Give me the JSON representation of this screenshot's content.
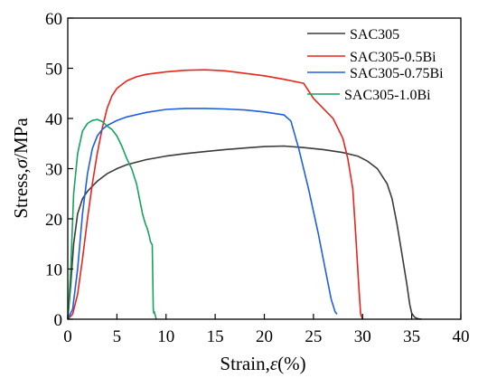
{
  "chart_data": {
    "type": "line",
    "title": "",
    "xlabel_prefix": "Strain,",
    "xlabel_symbol": "ε",
    "xlabel_suffix": "(%)",
    "ylabel_prefix": "Stress,",
    "ylabel_symbol": "σ",
    "ylabel_suffix": "/MPa",
    "xlim": [
      0,
      40
    ],
    "ylim": [
      0,
      60
    ],
    "xticks": [
      0,
      5,
      10,
      15,
      20,
      25,
      30,
      35,
      40
    ],
    "yticks": [
      0,
      10,
      20,
      30,
      40,
      50,
      60
    ],
    "grid": false,
    "legend_position": "top-right",
    "series": [
      {
        "name": "SAC305",
        "color": "#3a3a3a",
        "x": [
          0,
          0.3,
          0.6,
          1.0,
          1.5,
          2.0,
          2.5,
          3.0,
          4.0,
          5.0,
          6.0,
          8.0,
          10.0,
          12.0,
          14.0,
          16.0,
          18.0,
          20.0,
          22.0,
          24.0,
          26.0,
          28.0,
          29.5,
          30.5,
          31.5,
          32.5,
          33.0,
          33.5,
          34.0,
          34.5,
          34.8,
          35.0,
          35.3,
          35.6,
          36.0
        ],
        "y": [
          0,
          7,
          15,
          21,
          24,
          25.5,
          26.5,
          27.5,
          29,
          30,
          30.8,
          31.8,
          32.5,
          33,
          33.4,
          33.8,
          34.1,
          34.4,
          34.5,
          34.2,
          33.8,
          33.2,
          32.5,
          31.5,
          30,
          27,
          24,
          19,
          13,
          7,
          3,
          1.2,
          0.4,
          0.1,
          0
        ]
      },
      {
        "name": "SAC305-0.5Bi",
        "color": "#e8241c",
        "x": [
          0,
          0.5,
          1.0,
          1.5,
          2.0,
          2.5,
          3.0,
          3.5,
          4.0,
          4.5,
          5.0,
          6.0,
          7.0,
          8.0,
          10.0,
          12.0,
          14.0,
          16.0,
          18.0,
          20.0,
          22.0,
          24.0,
          25.0,
          26.0,
          27.0,
          28.0,
          28.5,
          29.0,
          29.3,
          29.6,
          29.8,
          30.0
        ],
        "y": [
          0,
          1,
          5,
          12,
          20,
          27,
          33,
          38,
          42,
          44.5,
          46,
          47.5,
          48.3,
          48.8,
          49.3,
          49.6,
          49.7,
          49.5,
          49,
          48.5,
          47.8,
          47,
          44,
          42,
          40,
          36,
          32,
          26,
          17,
          7,
          1,
          0
        ]
      },
      {
        "name": "SAC305-0.75Bi",
        "color": "#1e5fe0",
        "x": [
          0,
          0.5,
          1.0,
          1.5,
          2.0,
          2.5,
          3.0,
          3.5,
          4.0,
          5.0,
          6.0,
          8.0,
          10.0,
          12.0,
          14.0,
          16.0,
          18.0,
          20.0,
          22.0,
          22.7,
          23.5,
          24.5,
          25.5,
          26.2,
          26.8,
          27.2,
          27.4
        ],
        "y": [
          0,
          2,
          10,
          21,
          29,
          34,
          36.5,
          37.8,
          38.6,
          39.6,
          40.3,
          41.2,
          41.8,
          42,
          42,
          41.9,
          41.7,
          41.3,
          40.7,
          39.5,
          34,
          26,
          17,
          10,
          4,
          1.5,
          1
        ]
      },
      {
        "name": "SAC305-1.0Bi",
        "color": "#17a35c",
        "x": [
          0,
          0.3,
          0.6,
          1.0,
          1.5,
          2.0,
          2.5,
          3.0,
          3.5,
          4.0,
          4.5,
          5.0,
          5.5,
          6.0,
          6.5,
          7.0,
          7.3,
          7.6,
          7.9,
          8.1,
          8.3,
          8.4,
          8.6,
          8.7,
          8.75,
          8.8,
          8.9,
          9.0
        ],
        "y": [
          0,
          10,
          25,
          33,
          37.5,
          39,
          39.6,
          39.8,
          39.4,
          38.5,
          37.8,
          36.5,
          34.5,
          32,
          30,
          27,
          24,
          21,
          19,
          18,
          16.5,
          15.5,
          14.8,
          2,
          1.2,
          1.5,
          0.8,
          0
        ]
      }
    ]
  }
}
